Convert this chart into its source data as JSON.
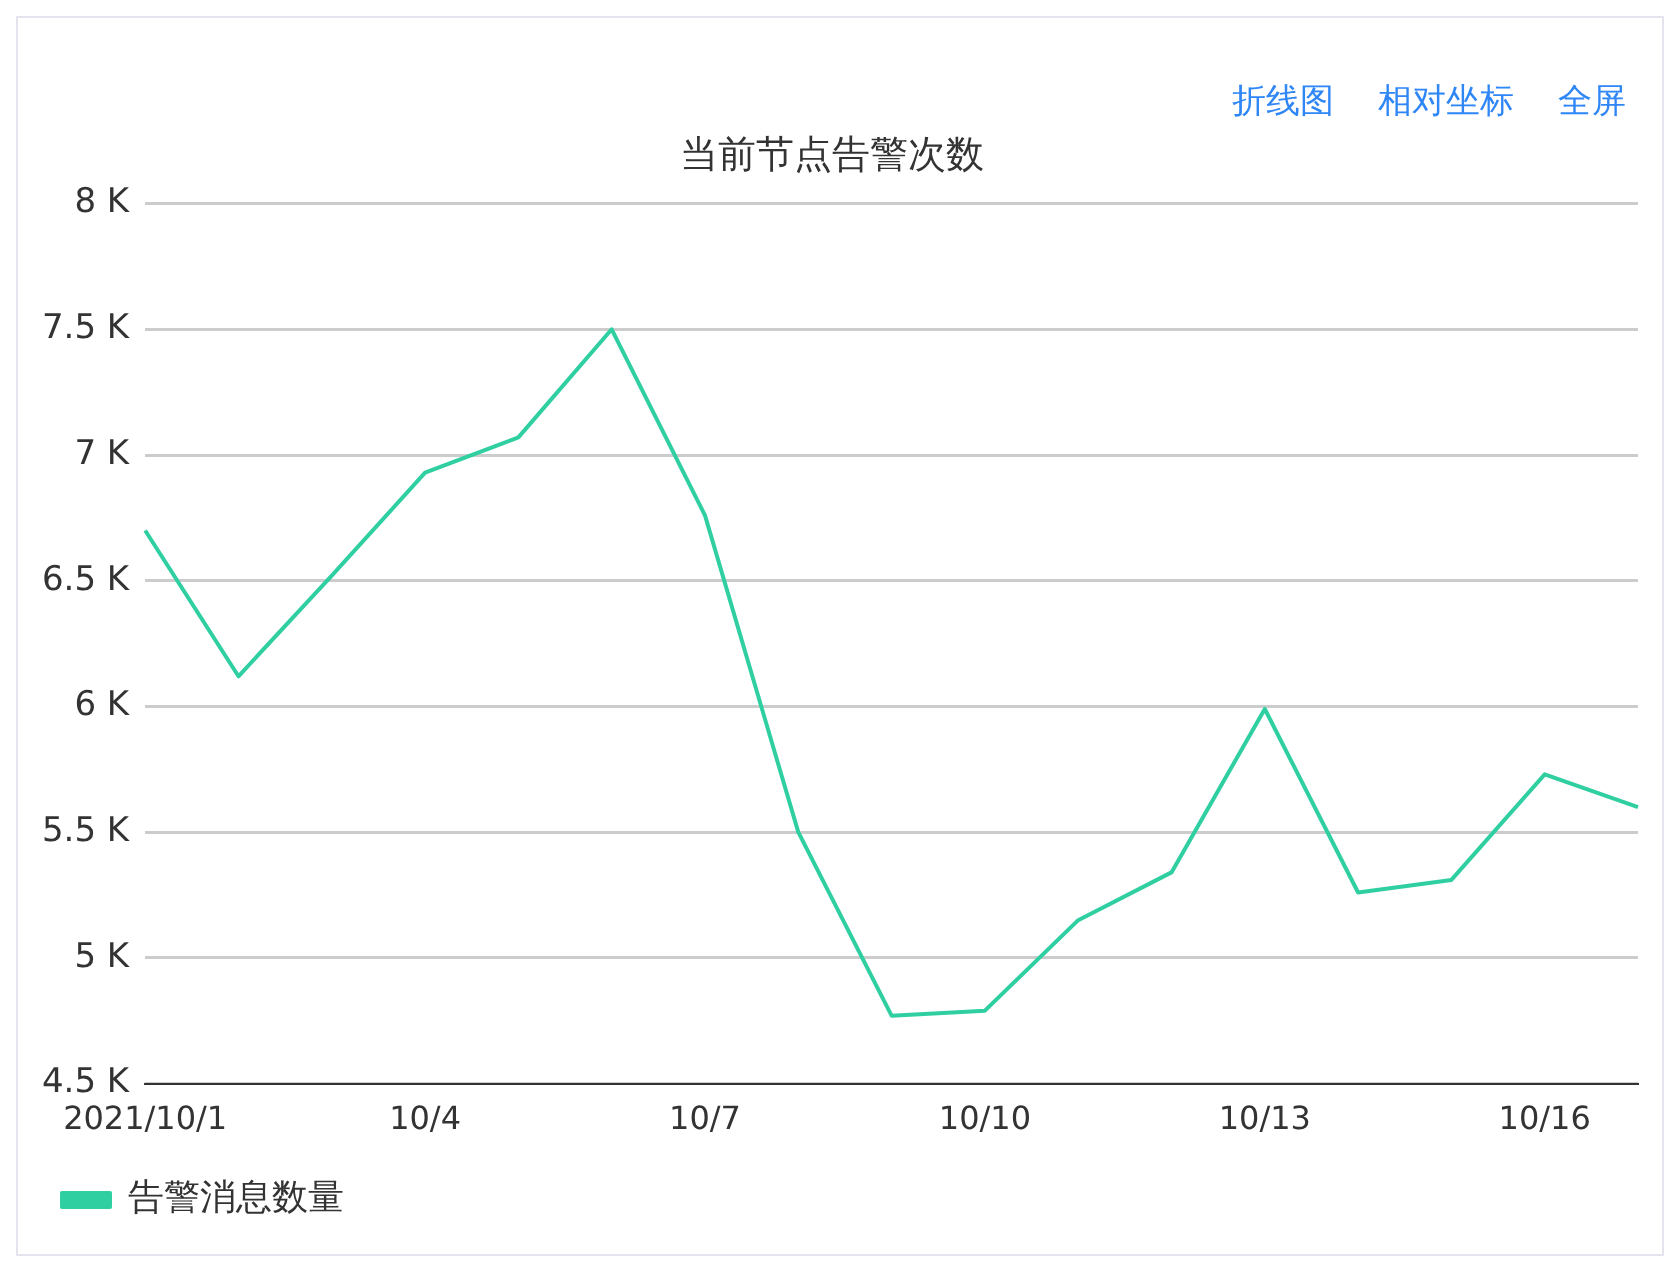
{
  "chart_data": {
    "type": "line",
    "title": "当前节点告警次数",
    "annotations": [
      "折线图",
      "相对坐标",
      "全屏"
    ],
    "categories": [
      "2021/10/1",
      null,
      null,
      "10/4",
      null,
      null,
      "10/7",
      null,
      null,
      "10/10",
      null,
      null,
      "10/13",
      null,
      null,
      "10/16",
      null
    ],
    "series": [
      {
        "name": "告警消息数量",
        "color": "#2fcfa1",
        "values": [
          6700,
          6120,
          6520,
          6930,
          7070,
          7500,
          6760,
          5500,
          4770,
          4790,
          5150,
          5340,
          5990,
          5260,
          5310,
          5730,
          5600
        ]
      }
    ],
    "ylim": [
      4500,
      8000
    ],
    "yticks": [
      {
        "value": 4500,
        "label": "4.5 K"
      },
      {
        "value": 5000,
        "label": "5 K"
      },
      {
        "value": 5500,
        "label": "5.5 K"
      },
      {
        "value": 6000,
        "label": "6 K"
      },
      {
        "value": 6500,
        "label": "6.5 K"
      },
      {
        "value": 7000,
        "label": "7 K"
      },
      {
        "value": 7500,
        "label": "7.5 K"
      },
      {
        "value": 8000,
        "label": "8 K"
      }
    ],
    "grid": "y",
    "legend": "bottom left",
    "marker": "none",
    "line_style": "solid"
  }
}
